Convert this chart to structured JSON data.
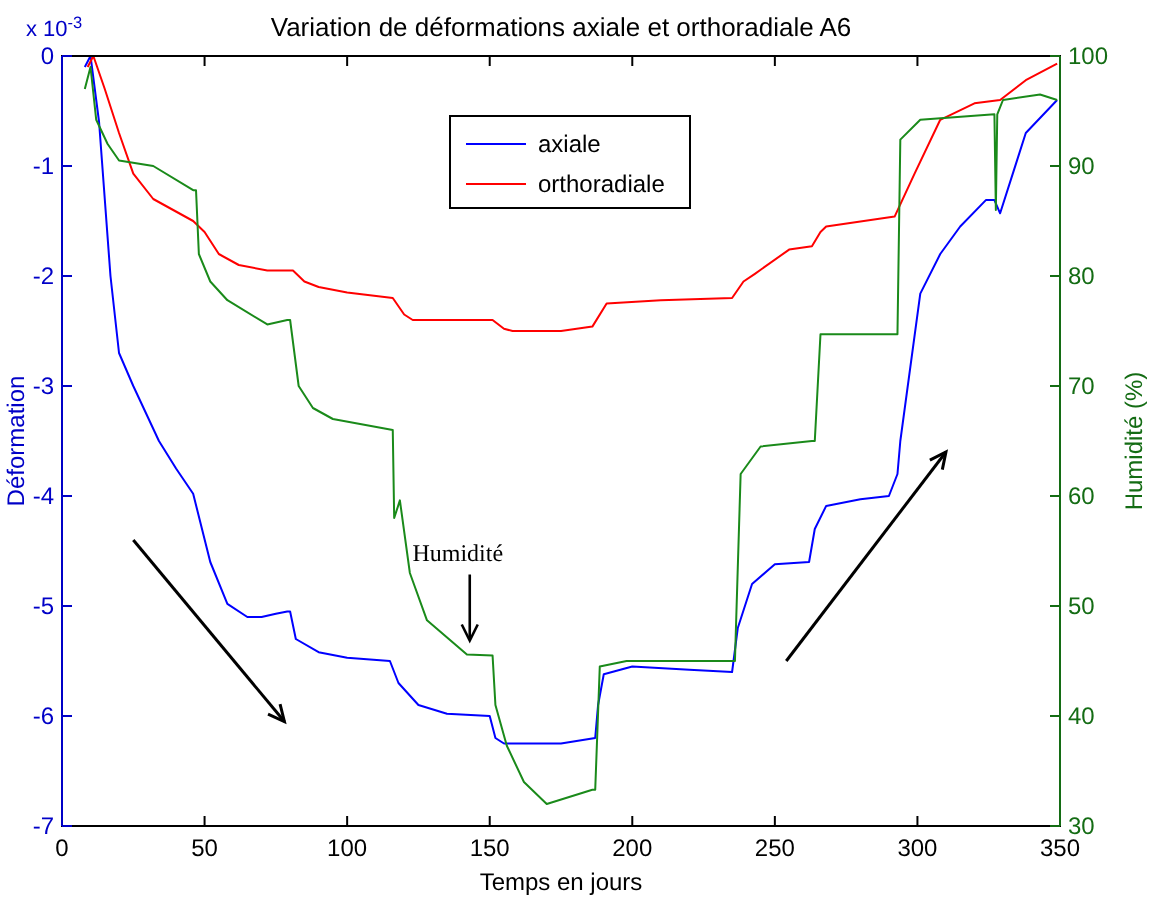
{
  "chart_data": {
    "type": "line",
    "title": "Variation de déformations axiale et orthoradiale A6",
    "xlabel": "Temps en jours",
    "ylabel": "Déformation",
    "y2label": "Humidité (%)",
    "xlim": [
      0,
      350
    ],
    "xticks": [
      0,
      50,
      100,
      150,
      200,
      250,
      300,
      350
    ],
    "ylim": [
      -7,
      0
    ],
    "yticks": [
      -7,
      -6,
      -5,
      -4,
      -3,
      -2,
      -1,
      0
    ],
    "y2lim": [
      30,
      100
    ],
    "y2ticks": [
      30,
      40,
      50,
      60,
      70,
      80,
      90,
      100
    ],
    "legend": "top",
    "grid": false,
    "annotations": [
      "x 10$^{-3}$",
      {
        "text": "Humidité",
        "x": 143,
        "y": -5.35
      }
    ],
    "series": [
      {
        "name": "axiale",
        "color": "#0000ff",
        "x": [
          8,
          10,
          13,
          17,
          20,
          25,
          34,
          40,
          46,
          52,
          58,
          65,
          70,
          75,
          79,
          80,
          82,
          90,
          100,
          115,
          118,
          125,
          135,
          150,
          152,
          155,
          165,
          175,
          187,
          188,
          190,
          200,
          220,
          235,
          237,
          242,
          250,
          262,
          264,
          268,
          280,
          290,
          293,
          294,
          301,
          308,
          315,
          324,
          327,
          329,
          338,
          349
        ],
        "values": [
          -0.1,
          0,
          -0.6,
          -2.0,
          -2.7,
          -3.0,
          -3.5,
          -3.75,
          -3.98,
          -4.6,
          -4.98,
          -5.1,
          -5.1,
          -5.07,
          -5.05,
          -5.05,
          -5.3,
          -5.42,
          -5.47,
          -5.5,
          -5.7,
          -5.9,
          -5.98,
          -6.0,
          -6.2,
          -6.25,
          -6.25,
          -6.25,
          -6.2,
          -5.9,
          -5.62,
          -5.55,
          -5.58,
          -5.6,
          -5.2,
          -4.8,
          -4.62,
          -4.6,
          -4.3,
          -4.09,
          -4.03,
          -4.0,
          -3.8,
          -3.5,
          -2.16,
          -1.8,
          -1.55,
          -1.31,
          -1.31,
          -1.43,
          -0.7,
          -0.4
        ]
      },
      {
        "name": "orthoradiale",
        "color": "#ff0000",
        "x": [
          9,
          11,
          15,
          20,
          25,
          32,
          46,
          50,
          55,
          62,
          72,
          81,
          85,
          90,
          100,
          116,
          120,
          123,
          140,
          151,
          155,
          158,
          175,
          186,
          191,
          210,
          235,
          239,
          243,
          255,
          263,
          266,
          268,
          292,
          299,
          308,
          320,
          329,
          338,
          349
        ],
        "values": [
          -0.1,
          0,
          -0.3,
          -0.7,
          -1.07,
          -1.3,
          -1.5,
          -1.6,
          -1.8,
          -1.9,
          -1.95,
          -1.95,
          -2.05,
          -2.1,
          -2.15,
          -2.2,
          -2.35,
          -2.4,
          -2.4,
          -2.4,
          -2.48,
          -2.5,
          -2.5,
          -2.46,
          -2.25,
          -2.22,
          -2.2,
          -2.05,
          -1.98,
          -1.76,
          -1.73,
          -1.6,
          -1.55,
          -1.46,
          -1.07,
          -0.58,
          -0.43,
          -0.4,
          -0.22,
          -0.07
        ]
      },
      {
        "color": "#1a8a1a",
        "axis": "y2",
        "x": [
          8,
          10,
          12,
          16,
          20,
          32,
          46,
          47,
          48,
          52,
          58,
          72,
          79,
          80,
          83,
          88,
          95,
          116,
          116.5,
          118.5,
          122,
          128,
          142,
          151,
          152,
          156,
          162,
          170,
          186,
          187,
          188.6,
          198,
          235,
          236,
          238,
          245,
          263,
          264,
          266,
          292,
          293,
          294,
          301,
          327,
          327.5,
          328,
          330,
          343,
          349
        ],
        "values": [
          97,
          99,
          94.2,
          92,
          90.5,
          90,
          87.8,
          87.8,
          82,
          79.5,
          77.8,
          75.6,
          76,
          76,
          70,
          68,
          67,
          66,
          58,
          59.6,
          53,
          48.7,
          45.6,
          45.5,
          41,
          37.3,
          34,
          32,
          33.3,
          33.3,
          44.5,
          45,
          45,
          45,
          62,
          64.5,
          65,
          65,
          74.7,
          74.7,
          74.7,
          92.4,
          94.2,
          94.7,
          86,
          94.7,
          96,
          96.5,
          96
        ]
      }
    ]
  }
}
